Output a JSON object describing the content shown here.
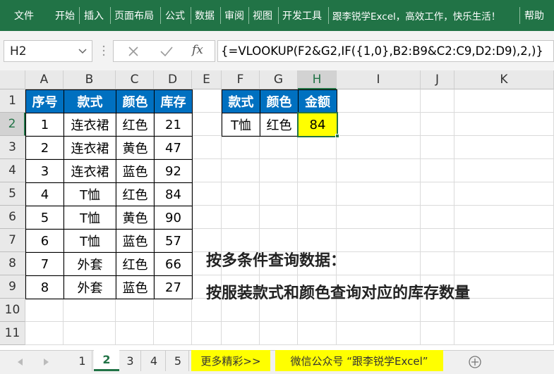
{
  "ribbon": {
    "tabs": [
      "文件",
      "开始",
      "插入",
      "页面布局",
      "公式",
      "数据",
      "审阅",
      "视图",
      "开发工具",
      "跟李锐学Excel，高效工作，快乐生活！",
      "帮助"
    ]
  },
  "formula_bar": {
    "name_box": "H2",
    "function_label": "fx",
    "formula": "{=VLOOKUP(F2&G2,IF({1,0},B2:B9&C2:C9,D2:D9),2,)}"
  },
  "sheet": {
    "columns": [
      "A",
      "B",
      "C",
      "D",
      "E",
      "F",
      "G",
      "H",
      "I",
      "J",
      "K"
    ],
    "rows": [
      1,
      2,
      3,
      4,
      5,
      6,
      7,
      8,
      9,
      10,
      11
    ],
    "table": {
      "header": [
        "序号",
        "款式",
        "颜色",
        "库存"
      ],
      "rows": [
        [
          1,
          "连衣裙",
          "红色",
          21
        ],
        [
          2,
          "连衣裙",
          "黄色",
          47
        ],
        [
          3,
          "连衣裙",
          "蓝色",
          92
        ],
        [
          4,
          "T恤",
          "红色",
          84
        ],
        [
          5,
          "T恤",
          "黄色",
          90
        ],
        [
          6,
          "T恤",
          "蓝色",
          57
        ],
        [
          7,
          "外套",
          "红色",
          66
        ],
        [
          8,
          "外套",
          "蓝色",
          27
        ]
      ]
    },
    "lookup": {
      "header": [
        "款式",
        "颜色",
        "金额"
      ],
      "row": [
        "T恤",
        "红色",
        84
      ]
    },
    "notes": [
      "按多条件查询数据：",
      "按服装款式和颜色查询对应的库存数量"
    ]
  },
  "sheet_tabs": [
    "1",
    "2",
    "3",
    "4",
    "5",
    "更多精彩>>",
    "微信公众号 “跟李锐学Excel”"
  ]
}
